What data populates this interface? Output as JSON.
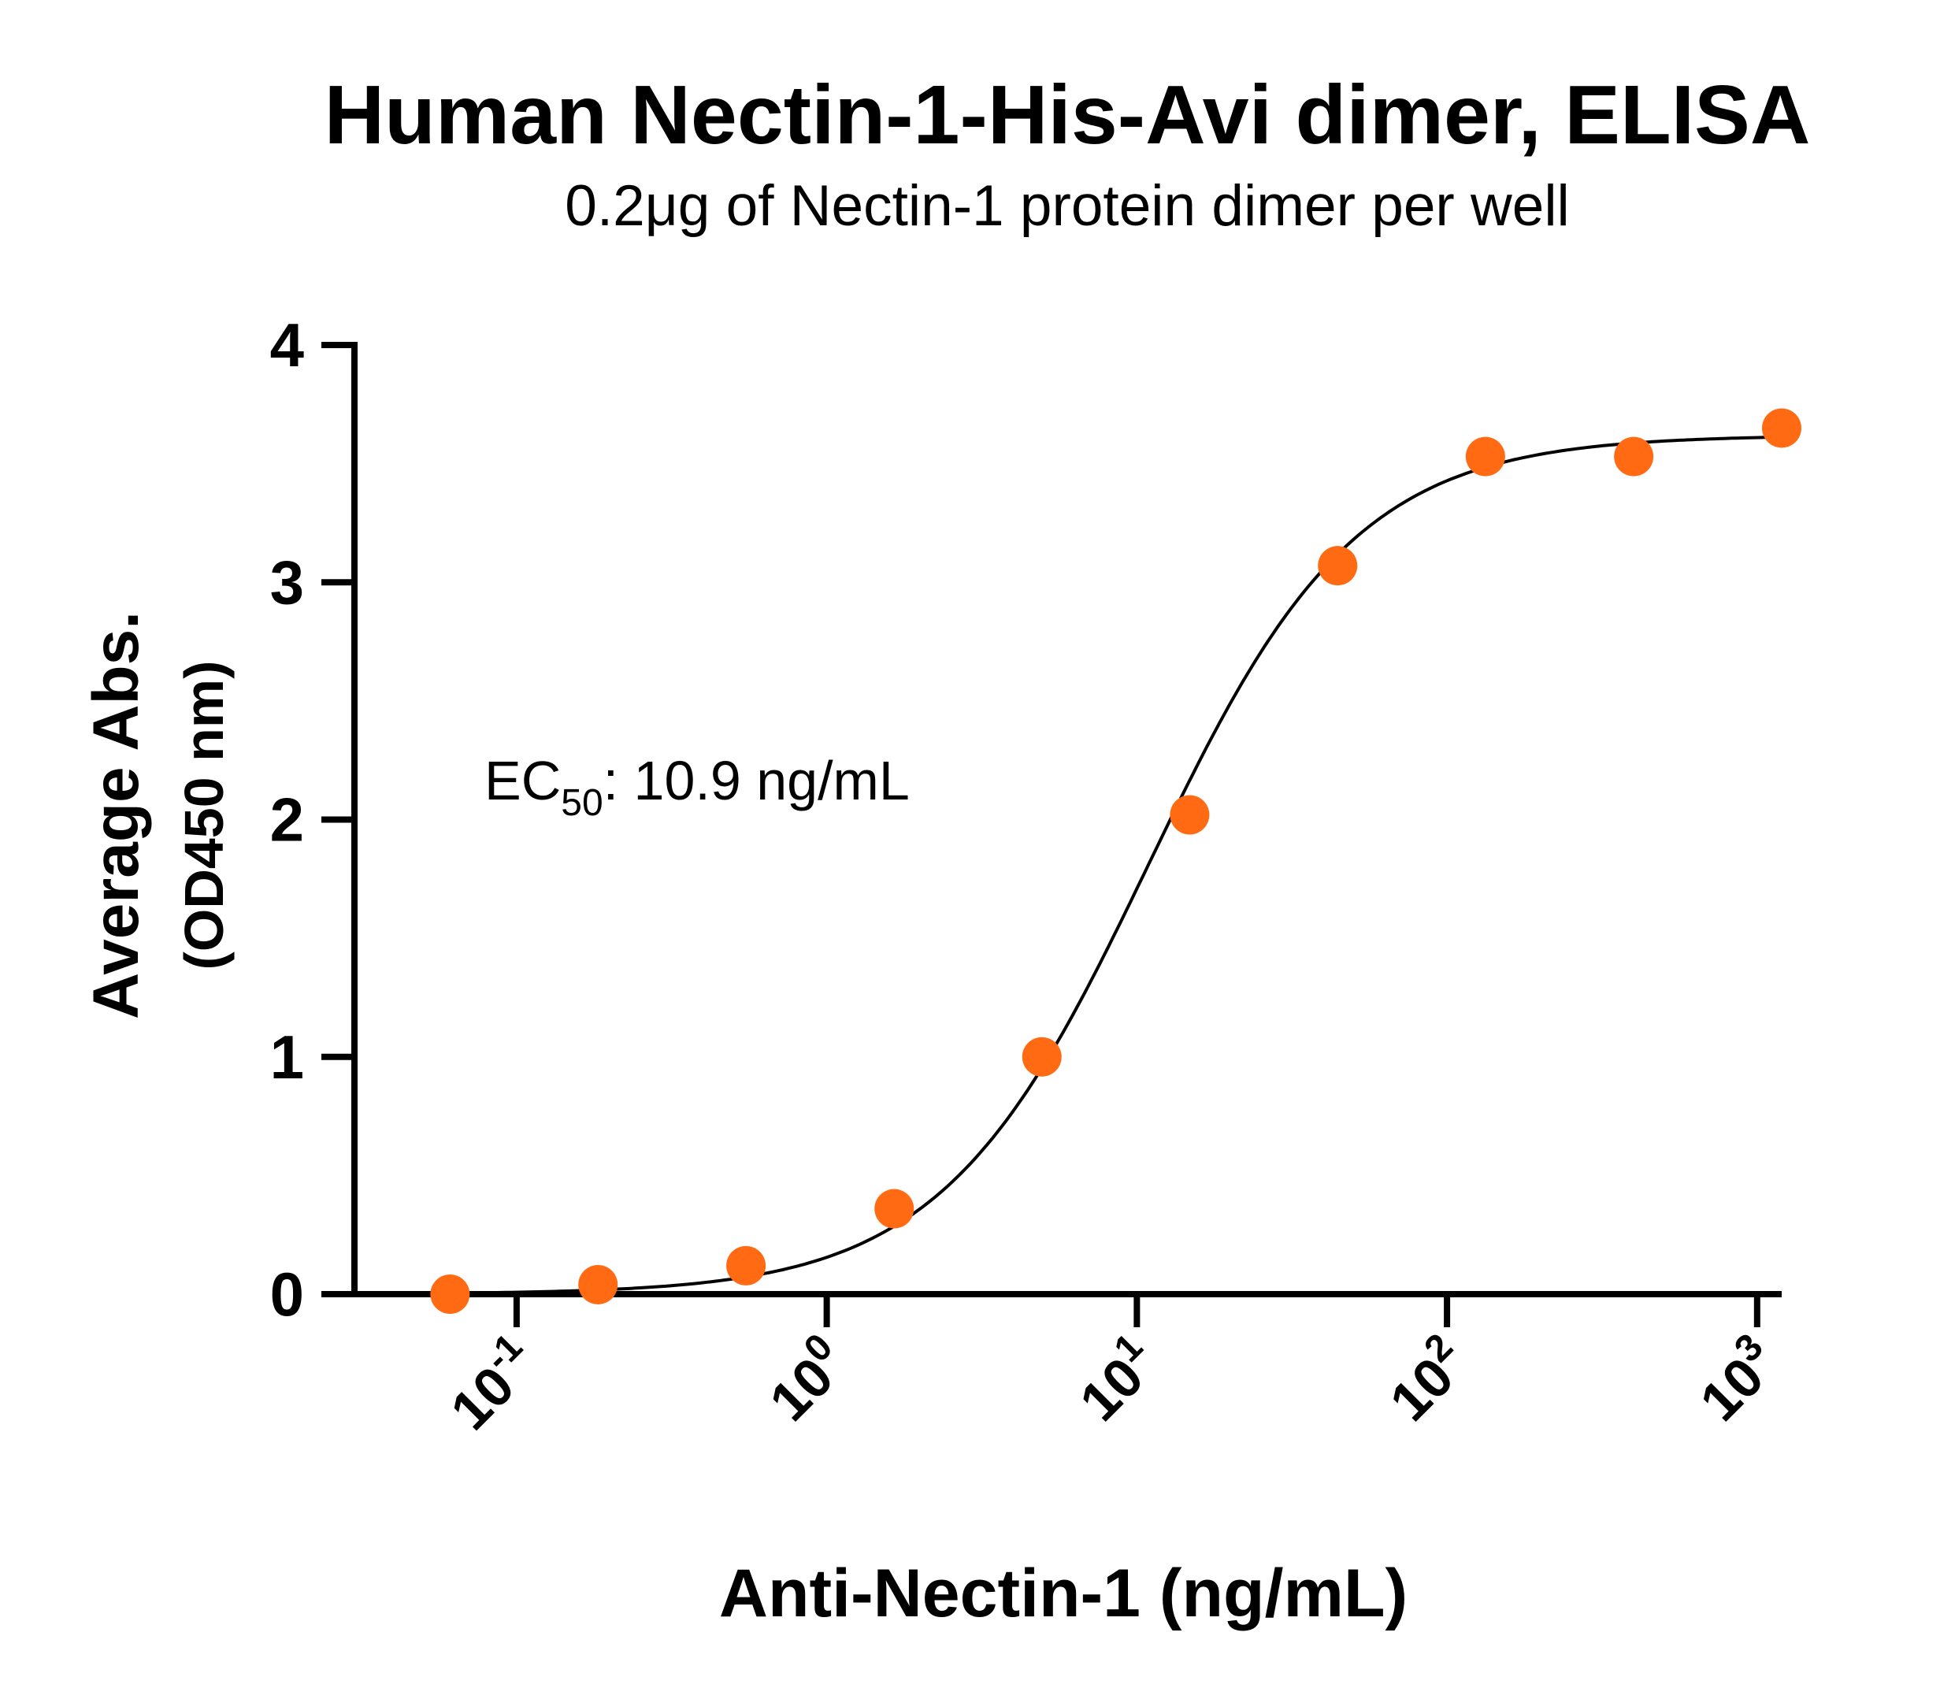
{
  "chart_data": {
    "type": "scatter",
    "title": "Human Nectin-1-His-Avi dimer, ELISA",
    "subtitle": "0.2μg of Nectin-1 protein dimer per well",
    "xlabel": "Anti-Nectin-1 (ng/mL)",
    "ylabel": "Average Abs.",
    "ylabel2": "(OD450 nm)",
    "x_scale": "log",
    "xlim": [
      0.03,
      1200
    ],
    "ylim": [
      0,
      4
    ],
    "x_ticks": [
      {
        "value": 0.1,
        "base": "10",
        "exp": "-1"
      },
      {
        "value": 1,
        "base": "10",
        "exp": "0"
      },
      {
        "value": 10,
        "base": "10",
        "exp": "1"
      },
      {
        "value": 100,
        "base": "10",
        "exp": "2"
      },
      {
        "value": 1000,
        "base": "10",
        "exp": "3"
      }
    ],
    "y_ticks": [
      "0",
      "1",
      "2",
      "3",
      "4"
    ],
    "grid": false,
    "annotation": {
      "prefix": "EC",
      "sub": "50",
      "suffix": ": 10.9 ng/mL"
    },
    "marker_color": "#ff6a13",
    "curve_color": "#000000",
    "series": [
      {
        "x": [
          0.061,
          0.183,
          0.549,
          1.65,
          4.94,
          14.8,
          44.4,
          133,
          400,
          1200
        ],
        "y": [
          0.0,
          0.04,
          0.12,
          0.36,
          1.0,
          2.02,
          3.07,
          3.53,
          3.53,
          3.65
        ]
      }
    ],
    "fit": {
      "model": "4PL",
      "bottom": 0.0,
      "top": 3.62,
      "ec50": 10.9,
      "hill": 1.3
    }
  }
}
